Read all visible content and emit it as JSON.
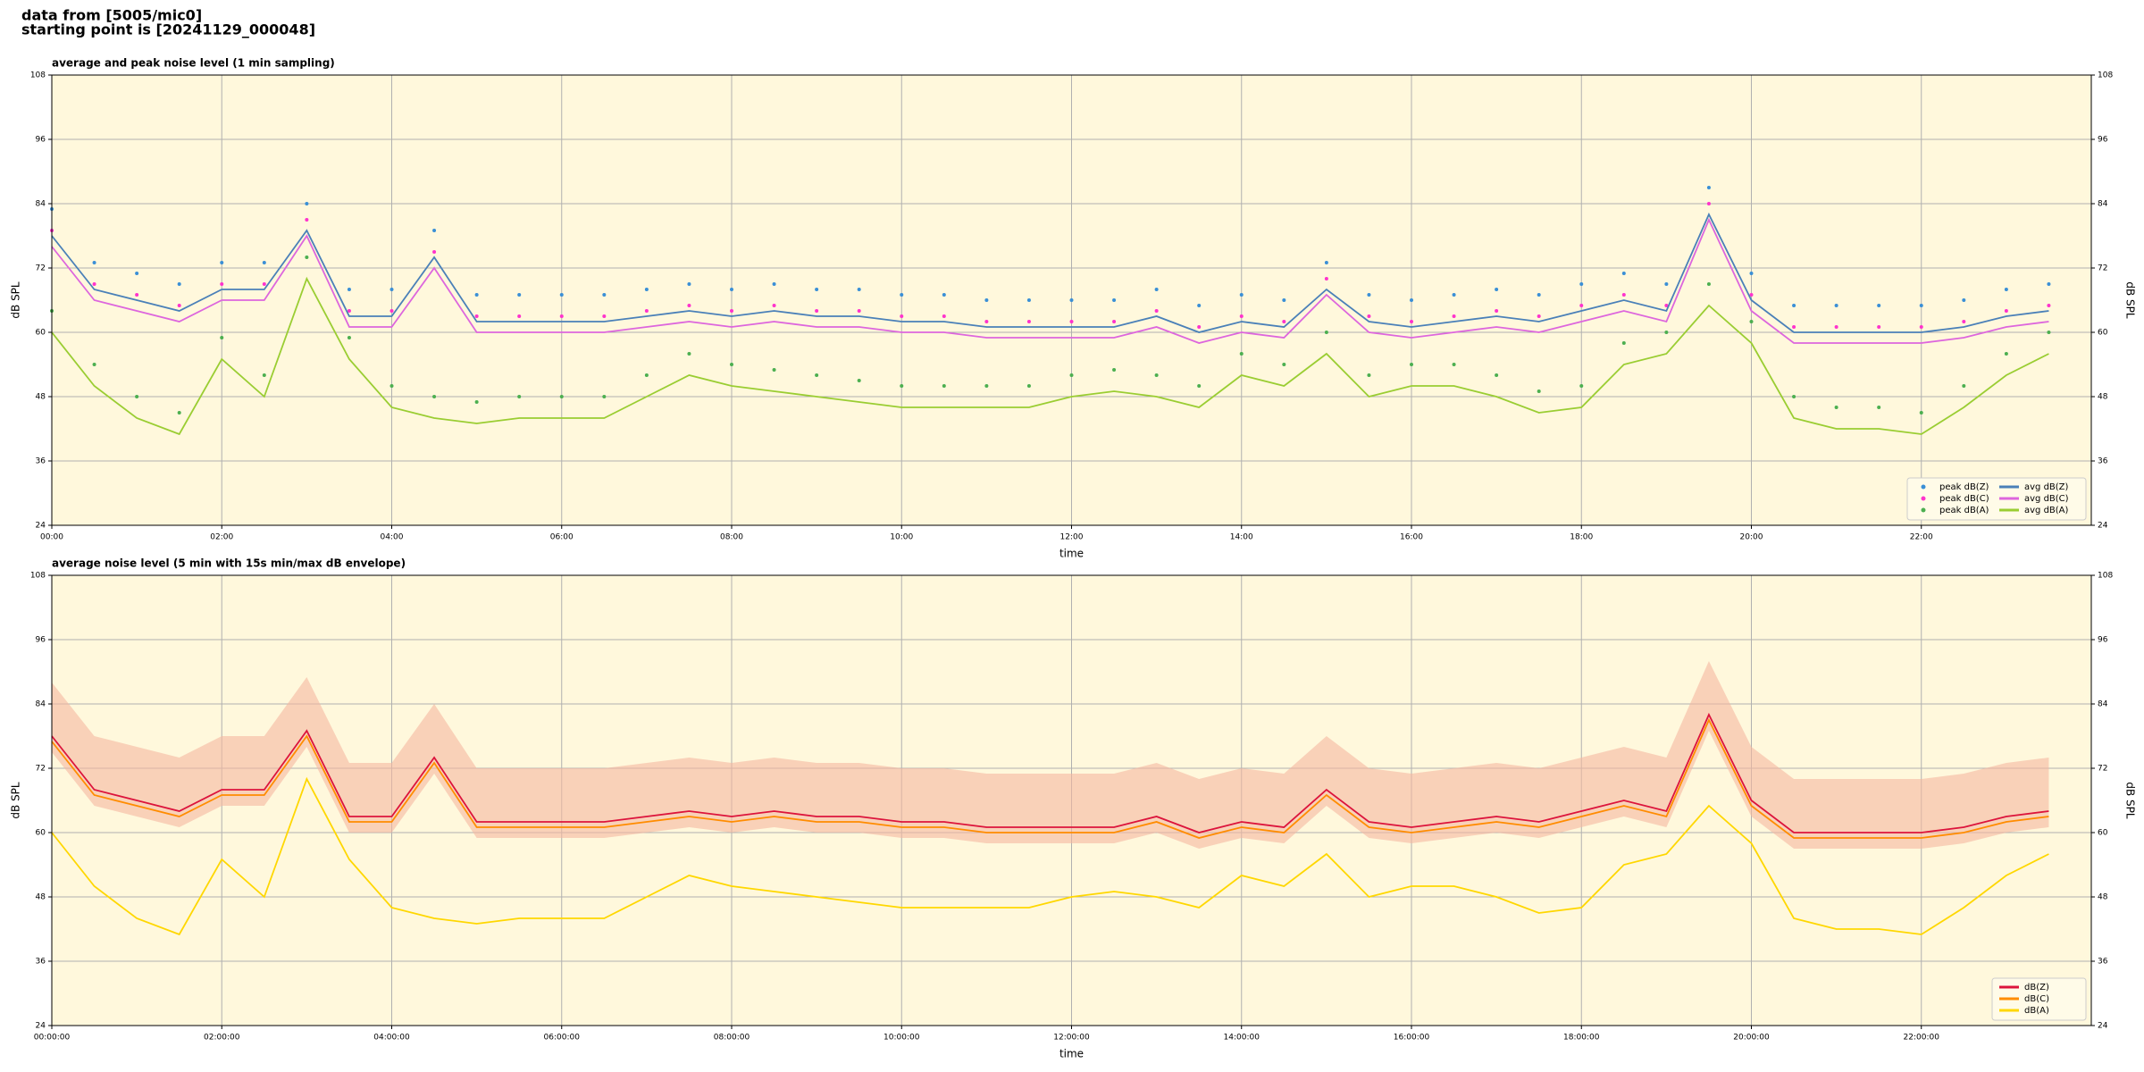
{
  "header": {
    "lines": [
      "data from [5005/mic0]",
      "starting point is [20241129_000048]"
    ]
  },
  "chart_data": [
    {
      "type": "line",
      "title": "average and peak noise level (1 min sampling)",
      "xlabel": "time",
      "ylabel": "dB SPL",
      "background": "#fff8dc",
      "grid": true,
      "legend": "lower right",
      "x": [
        "00:00",
        "00:30",
        "01:00",
        "01:30",
        "02:00",
        "02:30",
        "03:00",
        "03:30",
        "04:00",
        "04:30",
        "05:00",
        "05:30",
        "06:00",
        "06:30",
        "07:00",
        "07:30",
        "08:00",
        "08:30",
        "09:00",
        "09:30",
        "10:00",
        "10:30",
        "11:00",
        "11:30",
        "12:00",
        "12:30",
        "13:00",
        "13:30",
        "14:00",
        "14:30",
        "15:00",
        "15:30",
        "16:00",
        "16:30",
        "17:00",
        "17:30",
        "18:00",
        "18:30",
        "19:00",
        "19:30",
        "20:00",
        "20:30",
        "21:00",
        "21:30",
        "22:00",
        "22:30",
        "23:00",
        "23:30"
      ],
      "xlim": [
        "00:00",
        "24:00"
      ],
      "xticks": [
        "00:00",
        "02:00",
        "04:00",
        "06:00",
        "08:00",
        "10:00",
        "12:00",
        "14:00",
        "16:00",
        "18:00",
        "20:00",
        "22:00"
      ],
      "ylim": [
        24,
        108
      ],
      "yticks": [
        24,
        36,
        48,
        60,
        72,
        84,
        96,
        108
      ],
      "series": [
        {
          "name": "peak dB(Z)",
          "kind": "scatter",
          "color": "#3a8fd6",
          "values": [
            83,
            73,
            71,
            69,
            73,
            73,
            84,
            68,
            68,
            79,
            67,
            67,
            67,
            67,
            68,
            69,
            68,
            69,
            68,
            68,
            67,
            67,
            66,
            66,
            66,
            66,
            68,
            65,
            67,
            66,
            73,
            67,
            66,
            67,
            68,
            67,
            69,
            71,
            69,
            87,
            71,
            65,
            65,
            65,
            65,
            66,
            68,
            69
          ]
        },
        {
          "name": "peak dB(C)",
          "kind": "scatter",
          "color": "#ff33cc",
          "values": [
            79,
            69,
            67,
            65,
            69,
            69,
            81,
            64,
            64,
            75,
            63,
            63,
            63,
            63,
            64,
            65,
            64,
            65,
            64,
            64,
            63,
            63,
            62,
            62,
            62,
            62,
            64,
            61,
            63,
            62,
            70,
            63,
            62,
            63,
            64,
            63,
            65,
            67,
            65,
            84,
            67,
            61,
            61,
            61,
            61,
            62,
            64,
            65
          ]
        },
        {
          "name": "peak dB(A)",
          "kind": "scatter",
          "color": "#4caf50",
          "values": [
            64,
            54,
            48,
            45,
            59,
            52,
            74,
            59,
            50,
            48,
            47,
            48,
            48,
            48,
            52,
            56,
            54,
            53,
            52,
            51,
            50,
            50,
            50,
            50,
            52,
            53,
            52,
            50,
            56,
            54,
            60,
            52,
            54,
            54,
            52,
            49,
            50,
            58,
            60,
            69,
            62,
            48,
            46,
            46,
            45,
            50,
            56,
            60
          ]
        },
        {
          "name": "avg dB(Z)",
          "kind": "line",
          "color": "#4a80b8",
          "values": [
            78,
            68,
            66,
            64,
            68,
            68,
            79,
            63,
            63,
            74,
            62,
            62,
            62,
            62,
            63,
            64,
            63,
            64,
            63,
            63,
            62,
            62,
            61,
            61,
            61,
            61,
            63,
            60,
            62,
            61,
            68,
            62,
            61,
            62,
            63,
            62,
            64,
            66,
            64,
            82,
            66,
            60,
            60,
            60,
            60,
            61,
            63,
            64
          ]
        },
        {
          "name": "avg dB(C)",
          "kind": "line",
          "color": "#dd66dd",
          "values": [
            76,
            66,
            64,
            62,
            66,
            66,
            78,
            61,
            61,
            72,
            60,
            60,
            60,
            60,
            61,
            62,
            61,
            62,
            61,
            61,
            60,
            60,
            59,
            59,
            59,
            59,
            61,
            58,
            60,
            59,
            67,
            60,
            59,
            60,
            61,
            60,
            62,
            64,
            62,
            81,
            64,
            58,
            58,
            58,
            58,
            59,
            61,
            62
          ]
        },
        {
          "name": "avg dB(A)",
          "kind": "line",
          "color": "#9acd32",
          "values": [
            60,
            50,
            44,
            41,
            55,
            48,
            70,
            55,
            46,
            44,
            43,
            44,
            44,
            44,
            48,
            52,
            50,
            49,
            48,
            47,
            46,
            46,
            46,
            46,
            48,
            49,
            48,
            46,
            52,
            50,
            56,
            48,
            50,
            50,
            48,
            45,
            46,
            54,
            56,
            65,
            58,
            44,
            42,
            42,
            41,
            46,
            52,
            56
          ]
        }
      ]
    },
    {
      "type": "line",
      "title": "average noise level (5 min with 15s min/max dB envelope)",
      "xlabel": "time",
      "ylabel": "dB SPL",
      "background": "#fff8dc",
      "grid": true,
      "legend": "lower right",
      "x": [
        "00:00",
        "00:30",
        "01:00",
        "01:30",
        "02:00",
        "02:30",
        "03:00",
        "03:30",
        "04:00",
        "04:30",
        "05:00",
        "05:30",
        "06:00",
        "06:30",
        "07:00",
        "07:30",
        "08:00",
        "08:30",
        "09:00",
        "09:30",
        "10:00",
        "10:30",
        "11:00",
        "11:30",
        "12:00",
        "12:30",
        "13:00",
        "13:30",
        "14:00",
        "14:30",
        "15:00",
        "15:30",
        "16:00",
        "16:30",
        "17:00",
        "17:30",
        "18:00",
        "18:30",
        "19:00",
        "19:30",
        "20:00",
        "20:30",
        "21:00",
        "21:30",
        "22:00",
        "22:30",
        "23:00",
        "23:30"
      ],
      "xlim": [
        "00:00",
        "24:00"
      ],
      "xticks": [
        "00:00:00",
        "02:00:00",
        "04:00:00",
        "06:00:00",
        "08:00:00",
        "10:00:00",
        "12:00:00",
        "14:00:00",
        "16:00:00",
        "18:00:00",
        "20:00:00",
        "22:00:00"
      ],
      "ylim": [
        24,
        108
      ],
      "yticks": [
        24,
        36,
        48,
        60,
        72,
        84,
        96,
        108
      ],
      "envelope": {
        "color": "#f5b8a0",
        "low": [
          75,
          65,
          63,
          61,
          65,
          65,
          76,
          60,
          60,
          71,
          59,
          59,
          59,
          59,
          60,
          61,
          60,
          61,
          60,
          60,
          59,
          59,
          58,
          58,
          58,
          58,
          60,
          57,
          59,
          58,
          65,
          59,
          58,
          59,
          60,
          59,
          61,
          63,
          61,
          79,
          63,
          57,
          57,
          57,
          57,
          58,
          60,
          61
        ],
        "high": [
          88,
          78,
          76,
          74,
          78,
          78,
          89,
          73,
          73,
          84,
          72,
          72,
          72,
          72,
          73,
          74,
          73,
          74,
          73,
          73,
          72,
          72,
          71,
          71,
          71,
          71,
          73,
          70,
          72,
          71,
          78,
          72,
          71,
          72,
          73,
          72,
          74,
          76,
          74,
          92,
          76,
          70,
          70,
          70,
          70,
          71,
          73,
          74
        ]
      },
      "series": [
        {
          "name": "dB(Z)",
          "kind": "line",
          "color": "#dc143c",
          "values": [
            78,
            68,
            66,
            64,
            68,
            68,
            79,
            63,
            63,
            74,
            62,
            62,
            62,
            62,
            63,
            64,
            63,
            64,
            63,
            63,
            62,
            62,
            61,
            61,
            61,
            61,
            63,
            60,
            62,
            61,
            68,
            62,
            61,
            62,
            63,
            62,
            64,
            66,
            64,
            82,
            66,
            60,
            60,
            60,
            60,
            61,
            63,
            64
          ]
        },
        {
          "name": "dB(C)",
          "kind": "line",
          "color": "#ff8c00",
          "values": [
            77,
            67,
            65,
            63,
            67,
            67,
            78,
            62,
            62,
            73,
            61,
            61,
            61,
            61,
            62,
            63,
            62,
            63,
            62,
            62,
            61,
            61,
            60,
            60,
            60,
            60,
            62,
            59,
            61,
            60,
            67,
            61,
            60,
            61,
            62,
            61,
            63,
            65,
            63,
            81,
            65,
            59,
            59,
            59,
            59,
            60,
            62,
            63
          ]
        },
        {
          "name": "dB(A)",
          "kind": "line",
          "color": "#ffd700",
          "values": [
            60,
            50,
            44,
            41,
            55,
            48,
            70,
            55,
            46,
            44,
            43,
            44,
            44,
            44,
            48,
            52,
            50,
            49,
            48,
            47,
            46,
            46,
            46,
            46,
            48,
            49,
            48,
            46,
            52,
            50,
            56,
            48,
            50,
            50,
            48,
            45,
            46,
            54,
            56,
            65,
            58,
            44,
            42,
            42,
            41,
            46,
            52,
            56
          ]
        }
      ]
    }
  ]
}
